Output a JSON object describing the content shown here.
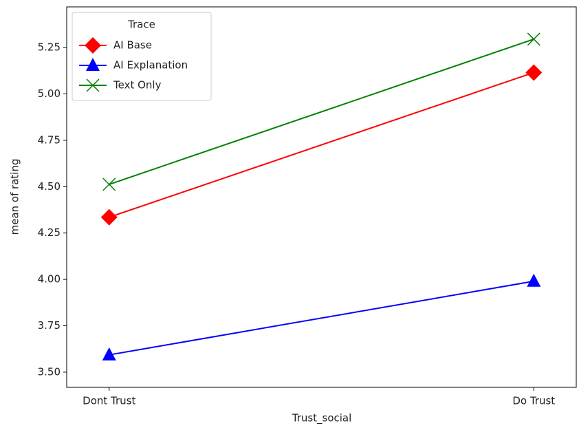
{
  "chart_data": {
    "type": "line",
    "xlabel": "Trust_social",
    "ylabel": "mean of rating",
    "categories": [
      "Dont Trust",
      "Do Trust"
    ],
    "legend_title": "Trace",
    "legend": "upper left",
    "series": [
      {
        "name": "AI Base",
        "color": "#ff0000",
        "marker": "diamond",
        "values": [
          4.335,
          5.115
        ]
      },
      {
        "name": "AI Explanation",
        "color": "#0000ff",
        "marker": "triangle",
        "values": [
          3.593,
          3.99
        ]
      },
      {
        "name": "Text Only",
        "color": "#008000",
        "marker": "x",
        "values": [
          4.512,
          5.295
        ]
      }
    ],
    "ylim": [
      3.418,
      5.469
    ],
    "yticks": [
      {
        "value": 3.5,
        "label": "3.50"
      },
      {
        "value": 3.75,
        "label": "3.75"
      },
      {
        "value": 4.0,
        "label": "4.00"
      },
      {
        "value": 4.25,
        "label": "4.25"
      },
      {
        "value": 4.5,
        "label": "4.50"
      },
      {
        "value": 4.75,
        "label": "4.75"
      },
      {
        "value": 5.0,
        "label": "5.00"
      },
      {
        "value": 5.25,
        "label": "5.25"
      }
    ]
  }
}
